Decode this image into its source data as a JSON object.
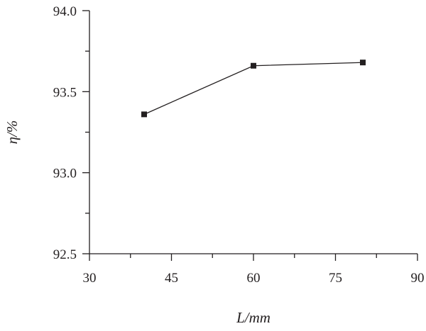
{
  "chart_data": {
    "type": "line",
    "title": "",
    "xlabel": "L/mm",
    "ylabel": "η/%",
    "xlim": [
      30,
      90
    ],
    "ylim": [
      92.5,
      94.0
    ],
    "x_ticks": [
      30,
      45,
      60,
      75,
      90
    ],
    "x_tick_labels": [
      "30",
      "45",
      "60",
      "75",
      "90"
    ],
    "y_ticks": [
      92.5,
      93.0,
      93.5,
      94.0
    ],
    "y_tick_labels": [
      "92.5",
      "93.0",
      "93.5",
      "94.0"
    ],
    "grid": false,
    "marker": "square",
    "color": "#231f20",
    "series": [
      {
        "x": [
          40,
          60,
          80
        ],
        "y": [
          93.36,
          93.66,
          93.68
        ]
      }
    ]
  }
}
